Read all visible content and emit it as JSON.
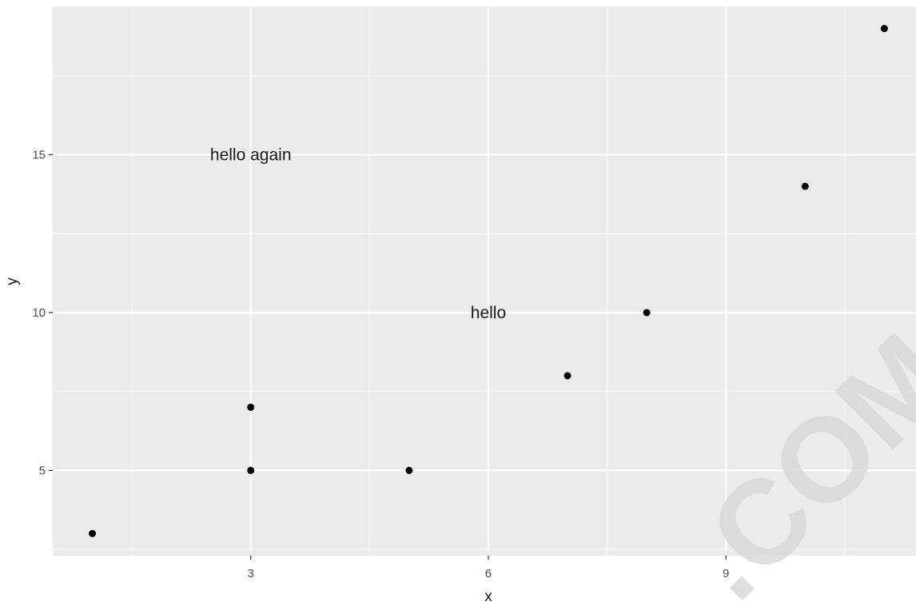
{
  "chart_data": {
    "type": "scatter",
    "title": "",
    "xlabel": "x",
    "ylabel": "y",
    "xlim": [
      0.5,
      11.4
    ],
    "ylim": [
      2.3,
      19.7
    ],
    "x_major_ticks": [
      3,
      6,
      9
    ],
    "x_minor_ticks": [
      1.5,
      4.5,
      7.5,
      10.5
    ],
    "y_major_ticks": [
      5,
      10,
      15
    ],
    "y_minor_ticks": [
      2.5,
      7.5,
      12.5,
      17.5
    ],
    "x_tick_labels": [
      "3",
      "6",
      "9"
    ],
    "y_tick_labels": [
      "5",
      "10",
      "15"
    ],
    "grid": true,
    "legend": "none",
    "points": [
      {
        "x": 1,
        "y": 3
      },
      {
        "x": 3,
        "y": 5
      },
      {
        "x": 3,
        "y": 7
      },
      {
        "x": 5,
        "y": 5
      },
      {
        "x": 7,
        "y": 8
      },
      {
        "x": 8,
        "y": 10
      },
      {
        "x": 10,
        "y": 14
      },
      {
        "x": 11,
        "y": 19
      }
    ],
    "annotations": [
      {
        "x": 3,
        "y": 15,
        "text": "hello again"
      },
      {
        "x": 6,
        "y": 10,
        "text": "hello"
      }
    ],
    "watermark": ".COM"
  },
  "colors": {
    "panel_background": "#ebebeb",
    "grid_major": "#ffffff",
    "grid_minor": "#f7f7f7",
    "point": "#000000",
    "tick_label": "#4d4d4d",
    "axis_title": "#1a1a1a",
    "watermark": "#d9d9d9"
  }
}
